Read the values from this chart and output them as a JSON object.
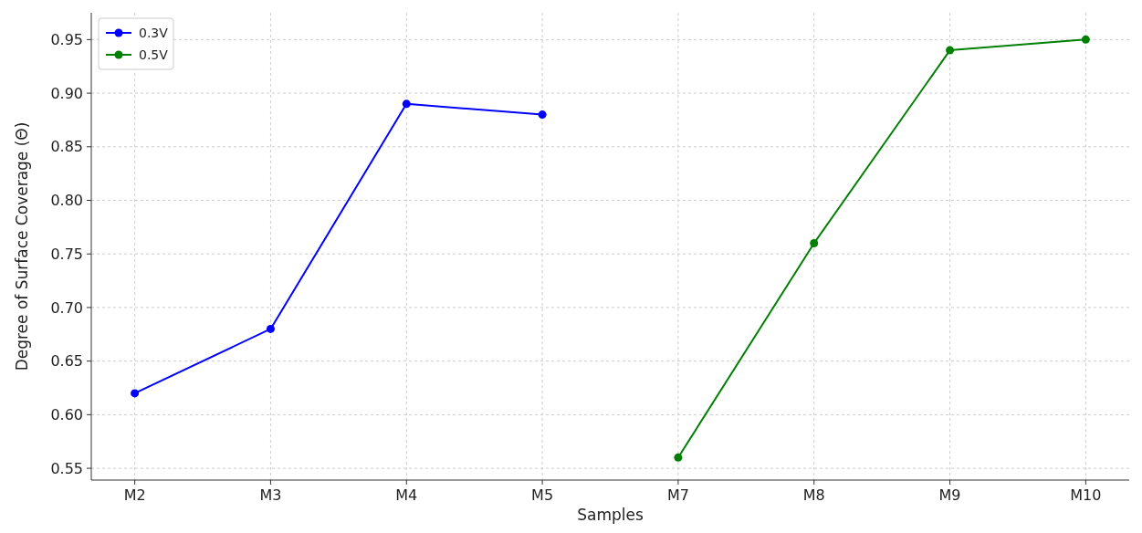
{
  "chart_data": {
    "type": "line",
    "xlabel": "Samples",
    "ylabel": "Degree of Surface Coverage (Θ)",
    "categories": [
      "M2",
      "M3",
      "M4",
      "M5",
      "M7",
      "M8",
      "M9",
      "M10"
    ],
    "series": [
      {
        "name": "0.3V",
        "color": "#0000ff",
        "values": [
          0.62,
          0.68,
          0.89,
          0.88,
          null,
          null,
          null,
          null
        ]
      },
      {
        "name": "0.5V",
        "color": "#008000",
        "values": [
          null,
          null,
          null,
          null,
          0.56,
          0.76,
          0.94,
          0.95
        ]
      }
    ],
    "ylim": [
      0.539,
      0.975
    ],
    "yticks": [
      0.55,
      {
        "value": 0.6,
        "label": "0.60"
      },
      0.65,
      {
        "value": 0.7,
        "label": "0.70"
      },
      0.75,
      {
        "value": 0.8,
        "label": "0.80"
      },
      0.85,
      {
        "value": 0.9,
        "label": "0.90"
      },
      0.95
    ],
    "grid": true,
    "legend": "top left",
    "marker": "circle",
    "line_style": "solid"
  }
}
